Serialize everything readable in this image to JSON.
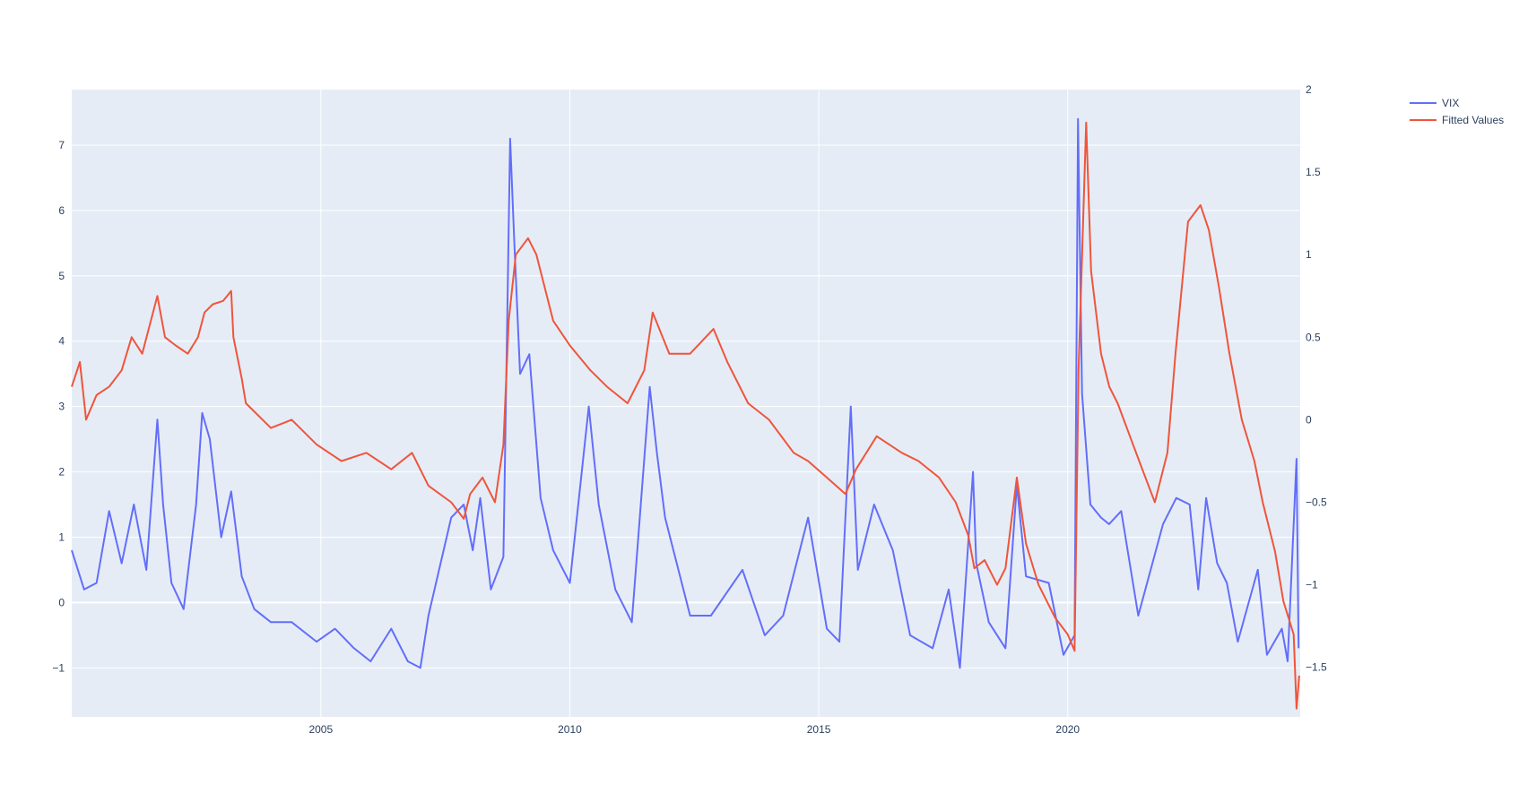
{
  "chart_data": {
    "type": "line",
    "title": "",
    "xlabel": "",
    "ylabel": "",
    "y2label": "",
    "grid": true,
    "legend_position": "top-right",
    "x_ticks": [
      "2005",
      "2010",
      "2015",
      "2020"
    ],
    "xlim": [
      "2000-01-01",
      "2024-09-01"
    ],
    "ylim": [
      -1.75,
      7.85
    ],
    "y_ticks": [
      -1,
      0,
      1,
      2,
      3,
      4,
      5,
      6,
      7
    ],
    "y_tick_labels": [
      "−1",
      "0",
      "1",
      "2",
      "3",
      "4",
      "5",
      "6",
      "7"
    ],
    "y2lim": [
      -1.8,
      2.0
    ],
    "y2_ticks": [
      -1.5,
      -1,
      -0.5,
      0,
      0.5,
      1,
      1.5,
      2
    ],
    "y2_tick_labels": [
      "−1.5",
      "−1",
      "−0.5",
      "0",
      "0.5",
      "1",
      "1.5",
      "2"
    ],
    "series": [
      {
        "name": "VIX",
        "axis": "y",
        "color": "#636efa",
        "x": [
          "2000-01-01",
          "2000-04-01",
          "2000-07-01",
          "2000-10-01",
          "2001-01-01",
          "2001-04-01",
          "2001-07-01",
          "2001-09-20",
          "2001-11-01",
          "2002-01-01",
          "2002-04-01",
          "2002-07-01",
          "2002-08-15",
          "2002-10-10",
          "2003-01-01",
          "2003-03-15",
          "2003-06-01",
          "2003-09-01",
          "2004-01-01",
          "2004-06-01",
          "2004-12-01",
          "2005-04-15",
          "2005-09-01",
          "2006-01-01",
          "2006-06-01",
          "2006-10-01",
          "2007-01-01",
          "2007-03-01",
          "2007-08-15",
          "2007-11-15",
          "2008-01-20",
          "2008-03-15",
          "2008-06-01",
          "2008-09-01",
          "2008-10-20",
          "2008-11-20",
          "2009-01-01",
          "2009-03-10",
          "2009-06-01",
          "2009-09-01",
          "2010-01-01",
          "2010-05-20",
          "2010-08-01",
          "2010-12-01",
          "2011-04-01",
          "2011-08-10",
          "2011-10-01",
          "2011-12-01",
          "2012-06-01",
          "2012-11-01",
          "2013-06-20",
          "2013-12-01",
          "2014-04-15",
          "2014-10-15",
          "2015-03-01",
          "2015-06-01",
          "2015-08-24",
          "2015-10-15",
          "2016-02-11",
          "2016-06-27",
          "2016-11-01",
          "2017-04-15",
          "2017-08-11",
          "2017-11-01",
          "2018-02-05",
          "2018-03-01",
          "2018-06-01",
          "2018-10-01",
          "2018-12-24",
          "2019-03-01",
          "2019-08-15",
          "2019-12-01",
          "2020-02-20",
          "2020-03-16",
          "2020-04-15",
          "2020-06-15",
          "2020-09-01",
          "2020-10-30",
          "2021-01-27",
          "2021-06-01",
          "2021-11-30",
          "2022-03-07",
          "2022-06-13",
          "2022-08-15",
          "2022-10-12",
          "2023-01-01",
          "2023-03-13",
          "2023-06-01",
          "2023-10-26",
          "2024-01-01",
          "2024-04-19",
          "2024-06-01",
          "2024-08-05",
          "2024-08-20"
        ],
        "y": [
          0.8,
          0.2,
          0.3,
          1.4,
          0.6,
          1.5,
          0.5,
          2.8,
          1.5,
          0.3,
          -0.1,
          1.5,
          2.9,
          2.5,
          1.0,
          1.7,
          0.4,
          -0.1,
          -0.3,
          -0.3,
          -0.6,
          -0.4,
          -0.7,
          -0.9,
          -0.4,
          -0.9,
          -1.0,
          -0.2,
          1.3,
          1.5,
          0.8,
          1.6,
          0.2,
          0.7,
          7.1,
          5.5,
          3.5,
          3.8,
          1.6,
          0.8,
          0.3,
          3.0,
          1.5,
          0.2,
          -0.3,
          3.3,
          2.3,
          1.3,
          -0.2,
          -0.2,
          0.5,
          -0.5,
          -0.2,
          1.3,
          -0.4,
          -0.6,
          3.0,
          0.5,
          1.5,
          0.8,
          -0.5,
          -0.7,
          0.2,
          -1.0,
          2.0,
          0.6,
          -0.3,
          -0.7,
          1.8,
          0.4,
          0.3,
          -0.8,
          -0.5,
          7.4,
          3.2,
          1.5,
          1.3,
          1.2,
          1.4,
          -0.2,
          1.2,
          1.6,
          1.5,
          0.2,
          1.6,
          0.6,
          0.3,
          -0.6,
          0.5,
          -0.8,
          -0.4,
          -0.9,
          2.2,
          -0.7
        ]
      },
      {
        "name": "Fitted Values",
        "axis": "y2",
        "color": "#ef553b",
        "x": [
          "2000-01-01",
          "2000-03-01",
          "2000-04-15",
          "2000-07-01",
          "2000-10-01",
          "2001-01-01",
          "2001-03-15",
          "2001-06-01",
          "2001-09-20",
          "2001-11-15",
          "2002-02-01",
          "2002-05-01",
          "2002-07-15",
          "2002-09-01",
          "2002-11-01",
          "2003-01-15",
          "2003-03-15",
          "2003-04-01",
          "2003-06-01",
          "2003-07-01",
          "2004-01-01",
          "2004-06-01",
          "2004-12-01",
          "2005-06-01",
          "2005-12-01",
          "2006-06-01",
          "2006-11-01",
          "2007-03-01",
          "2007-08-15",
          "2007-11-15",
          "2008-01-01",
          "2008-04-01",
          "2008-07-01",
          "2008-09-01",
          "2008-10-10",
          "2008-12-01",
          "2009-03-01",
          "2009-05-01",
          "2009-09-01",
          "2010-01-01",
          "2010-06-01",
          "2010-10-01",
          "2011-03-01",
          "2011-07-01",
          "2011-09-01",
          "2012-01-01",
          "2012-06-01",
          "2012-11-20",
          "2013-03-01",
          "2013-08-01",
          "2014-01-01",
          "2014-07-01",
          "2014-10-15",
          "2015-03-01",
          "2015-07-15",
          "2015-10-01",
          "2016-03-01",
          "2016-06-01",
          "2016-09-01",
          "2017-01-01",
          "2017-06-01",
          "2017-10-01",
          "2018-01-01",
          "2018-02-15",
          "2018-05-01",
          "2018-08-01",
          "2018-10-01",
          "2018-12-24",
          "2019-03-01",
          "2019-06-01",
          "2019-10-01",
          "2020-01-01",
          "2020-02-20",
          "2020-03-20",
          "2020-05-15",
          "2020-06-20",
          "2020-09-01",
          "2020-11-01",
          "2021-01-01",
          "2021-04-01",
          "2021-07-01",
          "2021-10-01",
          "2022-01-01",
          "2022-03-01",
          "2022-06-01",
          "2022-09-01",
          "2022-11-01",
          "2023-01-15",
          "2023-04-01",
          "2023-07-01",
          "2023-10-01",
          "2023-12-01",
          "2024-03-01",
          "2024-05-01",
          "2024-07-15",
          "2024-08-05",
          "2024-08-25"
        ],
        "y": [
          0.2,
          0.35,
          0.0,
          0.15,
          0.2,
          0.3,
          0.5,
          0.4,
          0.75,
          0.5,
          0.45,
          0.4,
          0.5,
          0.65,
          0.7,
          0.72,
          0.78,
          0.5,
          0.25,
          0.1,
          -0.05,
          0.0,
          -0.15,
          -0.25,
          -0.2,
          -0.3,
          -0.2,
          -0.4,
          -0.5,
          -0.6,
          -0.45,
          -0.35,
          -0.5,
          -0.15,
          0.6,
          1.0,
          1.1,
          1.0,
          0.6,
          0.45,
          0.3,
          0.2,
          0.1,
          0.3,
          0.65,
          0.4,
          0.4,
          0.55,
          0.35,
          0.1,
          0.0,
          -0.2,
          -0.25,
          -0.35,
          -0.45,
          -0.3,
          -0.1,
          -0.15,
          -0.2,
          -0.25,
          -0.35,
          -0.5,
          -0.7,
          -0.9,
          -0.85,
          -1.0,
          -0.9,
          -0.35,
          -0.75,
          -1.0,
          -1.2,
          -1.3,
          -1.4,
          0.3,
          1.8,
          0.9,
          0.4,
          0.2,
          0.1,
          -0.1,
          -0.3,
          -0.5,
          -0.2,
          0.4,
          1.2,
          1.3,
          1.15,
          0.8,
          0.4,
          0.0,
          -0.25,
          -0.5,
          -0.8,
          -1.1,
          -1.3,
          -1.75,
          -1.55
        ]
      }
    ]
  }
}
